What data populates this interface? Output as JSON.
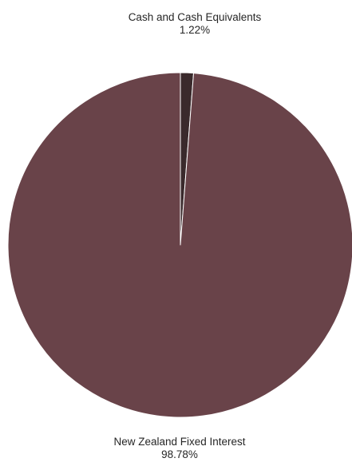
{
  "chart_data": {
    "type": "pie",
    "title": "",
    "slices": [
      {
        "label": "Cash and Cash Equivalents",
        "value": 1.22,
        "display": "1.22%",
        "color": "#3a2a2c"
      },
      {
        "label": "New Zealand Fixed Interest",
        "value": 98.78,
        "display": "98.78%",
        "color": "#694349"
      }
    ],
    "legend": "none",
    "edge_color": "#ffffff"
  },
  "labels": {
    "slice0_name": "Cash and Cash Equivalents",
    "slice0_pct": "1.22%",
    "slice1_name": "New Zealand Fixed Interest",
    "slice1_pct": "98.78%"
  }
}
